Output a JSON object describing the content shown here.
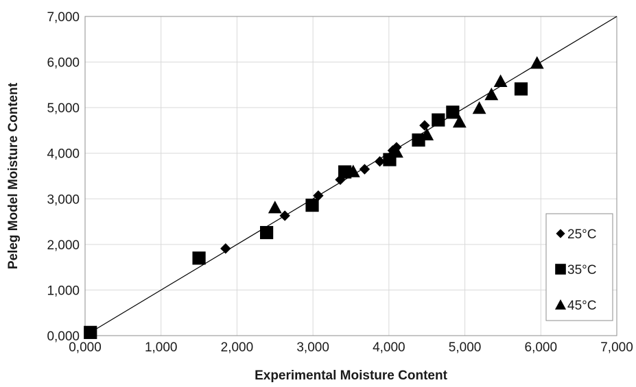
{
  "chart_data": {
    "type": "scatter",
    "xlabel": "Experimental Moisture Content",
    "ylabel": "Peleg Model Moisture Content",
    "xlim": [
      0,
      7
    ],
    "ylim": [
      0,
      7
    ],
    "x_ticks": [
      0,
      1,
      2,
      3,
      4,
      5,
      6,
      7
    ],
    "x_tick_labels": [
      "0,000",
      "1,000",
      "2,000",
      "3,000",
      "4,000",
      "5,000",
      "6,000",
      "7,000"
    ],
    "y_ticks": [
      0,
      1,
      2,
      3,
      4,
      5,
      6,
      7
    ],
    "y_tick_labels": [
      "0,000",
      "1,000",
      "2,000",
      "3,000",
      "4,000",
      "5,000",
      "6,000",
      "7,000"
    ],
    "grid": true,
    "legend_position": "bottom-right",
    "reference_line": {
      "from": [
        0,
        0
      ],
      "to": [
        7,
        7
      ]
    },
    "series": [
      {
        "name": "25°C",
        "marker": "diamond",
        "color": "#000000",
        "points": [
          [
            1.85,
            1.91
          ],
          [
            2.63,
            2.63
          ],
          [
            3.07,
            3.07
          ],
          [
            3.36,
            3.42
          ],
          [
            3.68,
            3.65
          ],
          [
            3.88,
            3.82
          ],
          [
            4.05,
            4.06
          ],
          [
            4.1,
            4.13
          ],
          [
            4.47,
            4.61
          ]
        ]
      },
      {
        "name": "35°C",
        "marker": "square",
        "color": "#000000",
        "points": [
          [
            0.07,
            0.07
          ],
          [
            1.5,
            1.7
          ],
          [
            2.39,
            2.26
          ],
          [
            2.99,
            2.86
          ],
          [
            3.42,
            3.59
          ],
          [
            4.01,
            3.86
          ],
          [
            4.39,
            4.29
          ],
          [
            4.65,
            4.73
          ],
          [
            4.84,
            4.9
          ],
          [
            5.74,
            5.41
          ]
        ]
      },
      {
        "name": "45°C",
        "marker": "triangle",
        "color": "#000000",
        "points": [
          [
            2.5,
            2.81
          ],
          [
            3.53,
            3.6
          ],
          [
            4.1,
            4.03
          ],
          [
            4.5,
            4.41
          ],
          [
            4.93,
            4.69
          ],
          [
            5.19,
            4.99
          ],
          [
            5.35,
            5.29
          ],
          [
            5.47,
            5.58
          ],
          [
            5.95,
            5.98
          ]
        ]
      }
    ]
  }
}
